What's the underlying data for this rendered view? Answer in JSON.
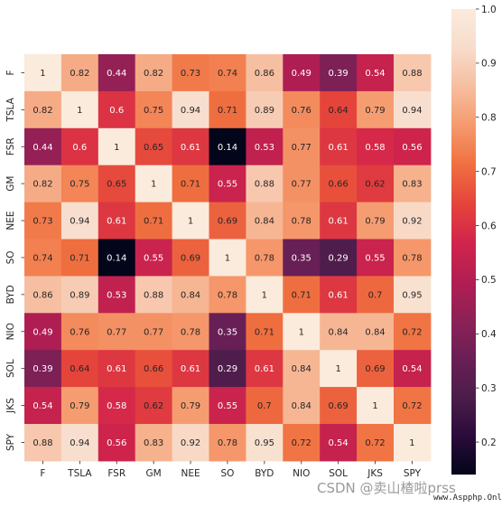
{
  "chart_data": {
    "type": "heatmap",
    "title": "",
    "xlabel": "",
    "ylabel": "",
    "labels": [
      "F",
      "TSLA",
      "FSR",
      "GM",
      "NEE",
      "SO",
      "BYD",
      "NIO",
      "SOL",
      "JKS",
      "SPY"
    ],
    "matrix": [
      [
        1,
        0.82,
        0.44,
        0.82,
        0.73,
        0.74,
        0.86,
        0.49,
        0.39,
        0.54,
        0.88
      ],
      [
        0.82,
        1,
        0.6,
        0.75,
        0.94,
        0.71,
        0.89,
        0.76,
        0.64,
        0.79,
        0.94
      ],
      [
        0.44,
        0.6,
        1,
        0.65,
        0.61,
        0.14,
        0.53,
        0.77,
        0.61,
        0.58,
        0.56
      ],
      [
        0.82,
        0.75,
        0.65,
        1,
        0.71,
        0.55,
        0.88,
        0.77,
        0.66,
        0.62,
        0.83
      ],
      [
        0.73,
        0.94,
        0.61,
        0.71,
        1,
        0.69,
        0.84,
        0.78,
        0.61,
        0.79,
        0.92
      ],
      [
        0.74,
        0.71,
        0.14,
        0.55,
        0.69,
        1,
        0.78,
        0.35,
        0.29,
        0.55,
        0.78
      ],
      [
        0.86,
        0.89,
        0.53,
        0.88,
        0.84,
        0.78,
        1,
        0.71,
        0.61,
        0.7,
        0.95
      ],
      [
        0.49,
        0.76,
        0.77,
        0.77,
        0.78,
        0.35,
        0.71,
        1,
        0.84,
        0.84,
        0.72
      ],
      [
        0.39,
        0.64,
        0.61,
        0.66,
        0.61,
        0.29,
        0.61,
        0.84,
        1,
        0.69,
        0.54
      ],
      [
        0.54,
        0.79,
        0.58,
        0.62,
        0.79,
        0.55,
        0.7,
        0.84,
        0.69,
        1,
        0.72
      ],
      [
        0.88,
        0.94,
        0.56,
        0.83,
        0.92,
        0.78,
        0.95,
        0.72,
        0.54,
        0.72,
        1
      ]
    ],
    "colormap": "rocket",
    "vmin": 0.14,
    "vmax": 1.0,
    "annotate": true,
    "colorbar": {
      "ticks": [
        0.2,
        0.3,
        0.4,
        0.5,
        0.6,
        0.7,
        0.8,
        0.9,
        1.0
      ],
      "tick_labels": [
        "0.2",
        "0.3",
        "0.4",
        "0.5",
        "0.6",
        "0.7",
        "0.8",
        "0.9",
        "1.0"
      ],
      "placement": "right"
    },
    "grid": false,
    "colorscale": [
      "#03051a",
      "#2b0b3a",
      "#4c1d4b",
      "#6a1f56",
      "#8e2157",
      "#b21e53",
      "#d3254b",
      "#e5453b",
      "#f07040",
      "#f59a6d",
      "#f6bea0",
      "#f8dccb",
      "#faebdd"
    ]
  },
  "watermark": {
    "main": "CSDN @卖山楂啦prss",
    "sub": "www.Aspphp.Online"
  }
}
